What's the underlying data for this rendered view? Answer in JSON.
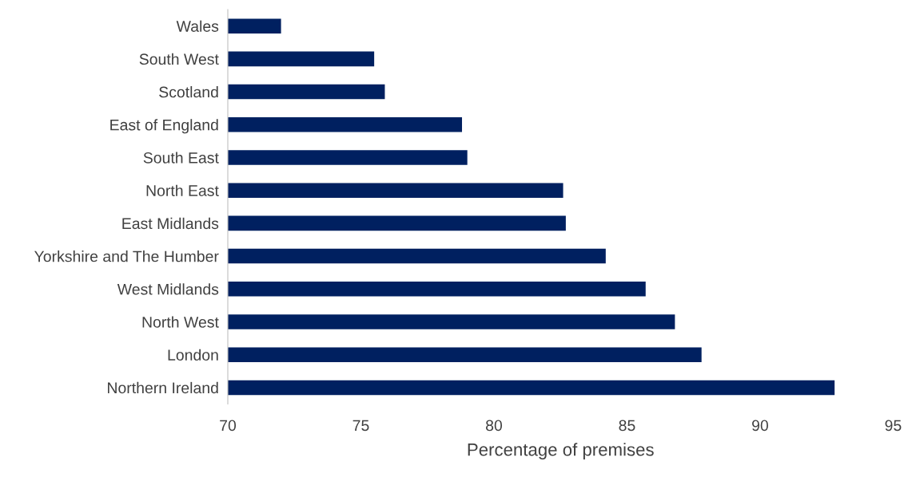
{
  "chart_data": {
    "type": "bar",
    "orientation": "horizontal",
    "xlabel": "Percentage of premises",
    "categories": [
      "Wales",
      "South West",
      "Scotland",
      "East of England",
      "South East",
      "North East",
      "East Midlands",
      "Yorkshire and The Humber",
      "West Midlands",
      "North West",
      "London",
      "Northern Ireland"
    ],
    "values": [
      72.0,
      75.5,
      75.9,
      78.8,
      79.0,
      82.6,
      82.7,
      84.2,
      85.7,
      86.8,
      87.8,
      92.8
    ],
    "color": "#002060",
    "xlim": [
      70,
      95
    ],
    "xticks": [
      70,
      75,
      80,
      85,
      90,
      95
    ],
    "grid": false,
    "legend": false
  }
}
